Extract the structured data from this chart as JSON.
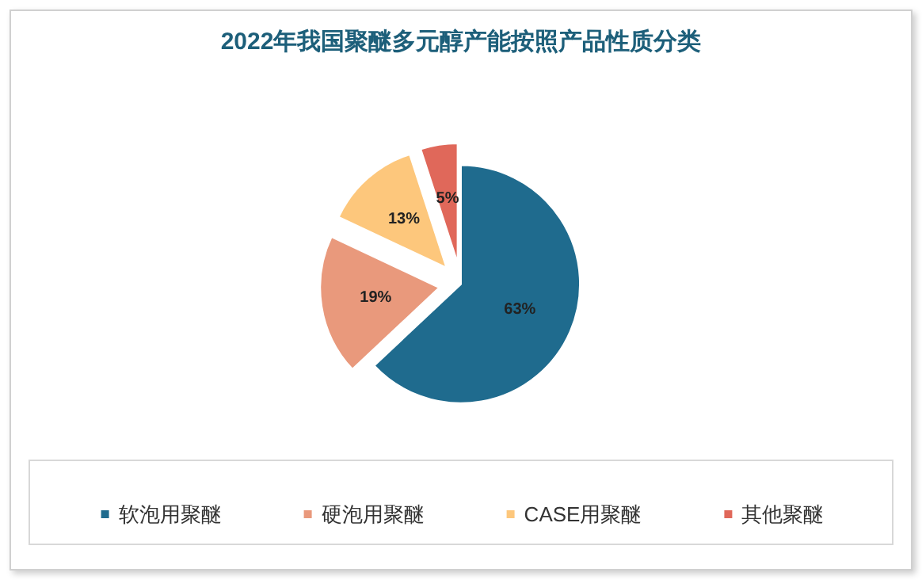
{
  "chart_data": {
    "type": "pie",
    "title": "2022年我国聚醚多元醇产能按照产品性质分类",
    "categories": [
      "软泡用聚醚",
      "硬泡用聚醚",
      "CASE用聚醚",
      "其他聚醚"
    ],
    "values": [
      63,
      19,
      13,
      5
    ],
    "colors": [
      "#1f6b8e",
      "#e9997c",
      "#fdc77c",
      "#e0685a"
    ],
    "value_labels": [
      "63%",
      "19%",
      "13%",
      "5%"
    ],
    "legend": "bottom"
  }
}
